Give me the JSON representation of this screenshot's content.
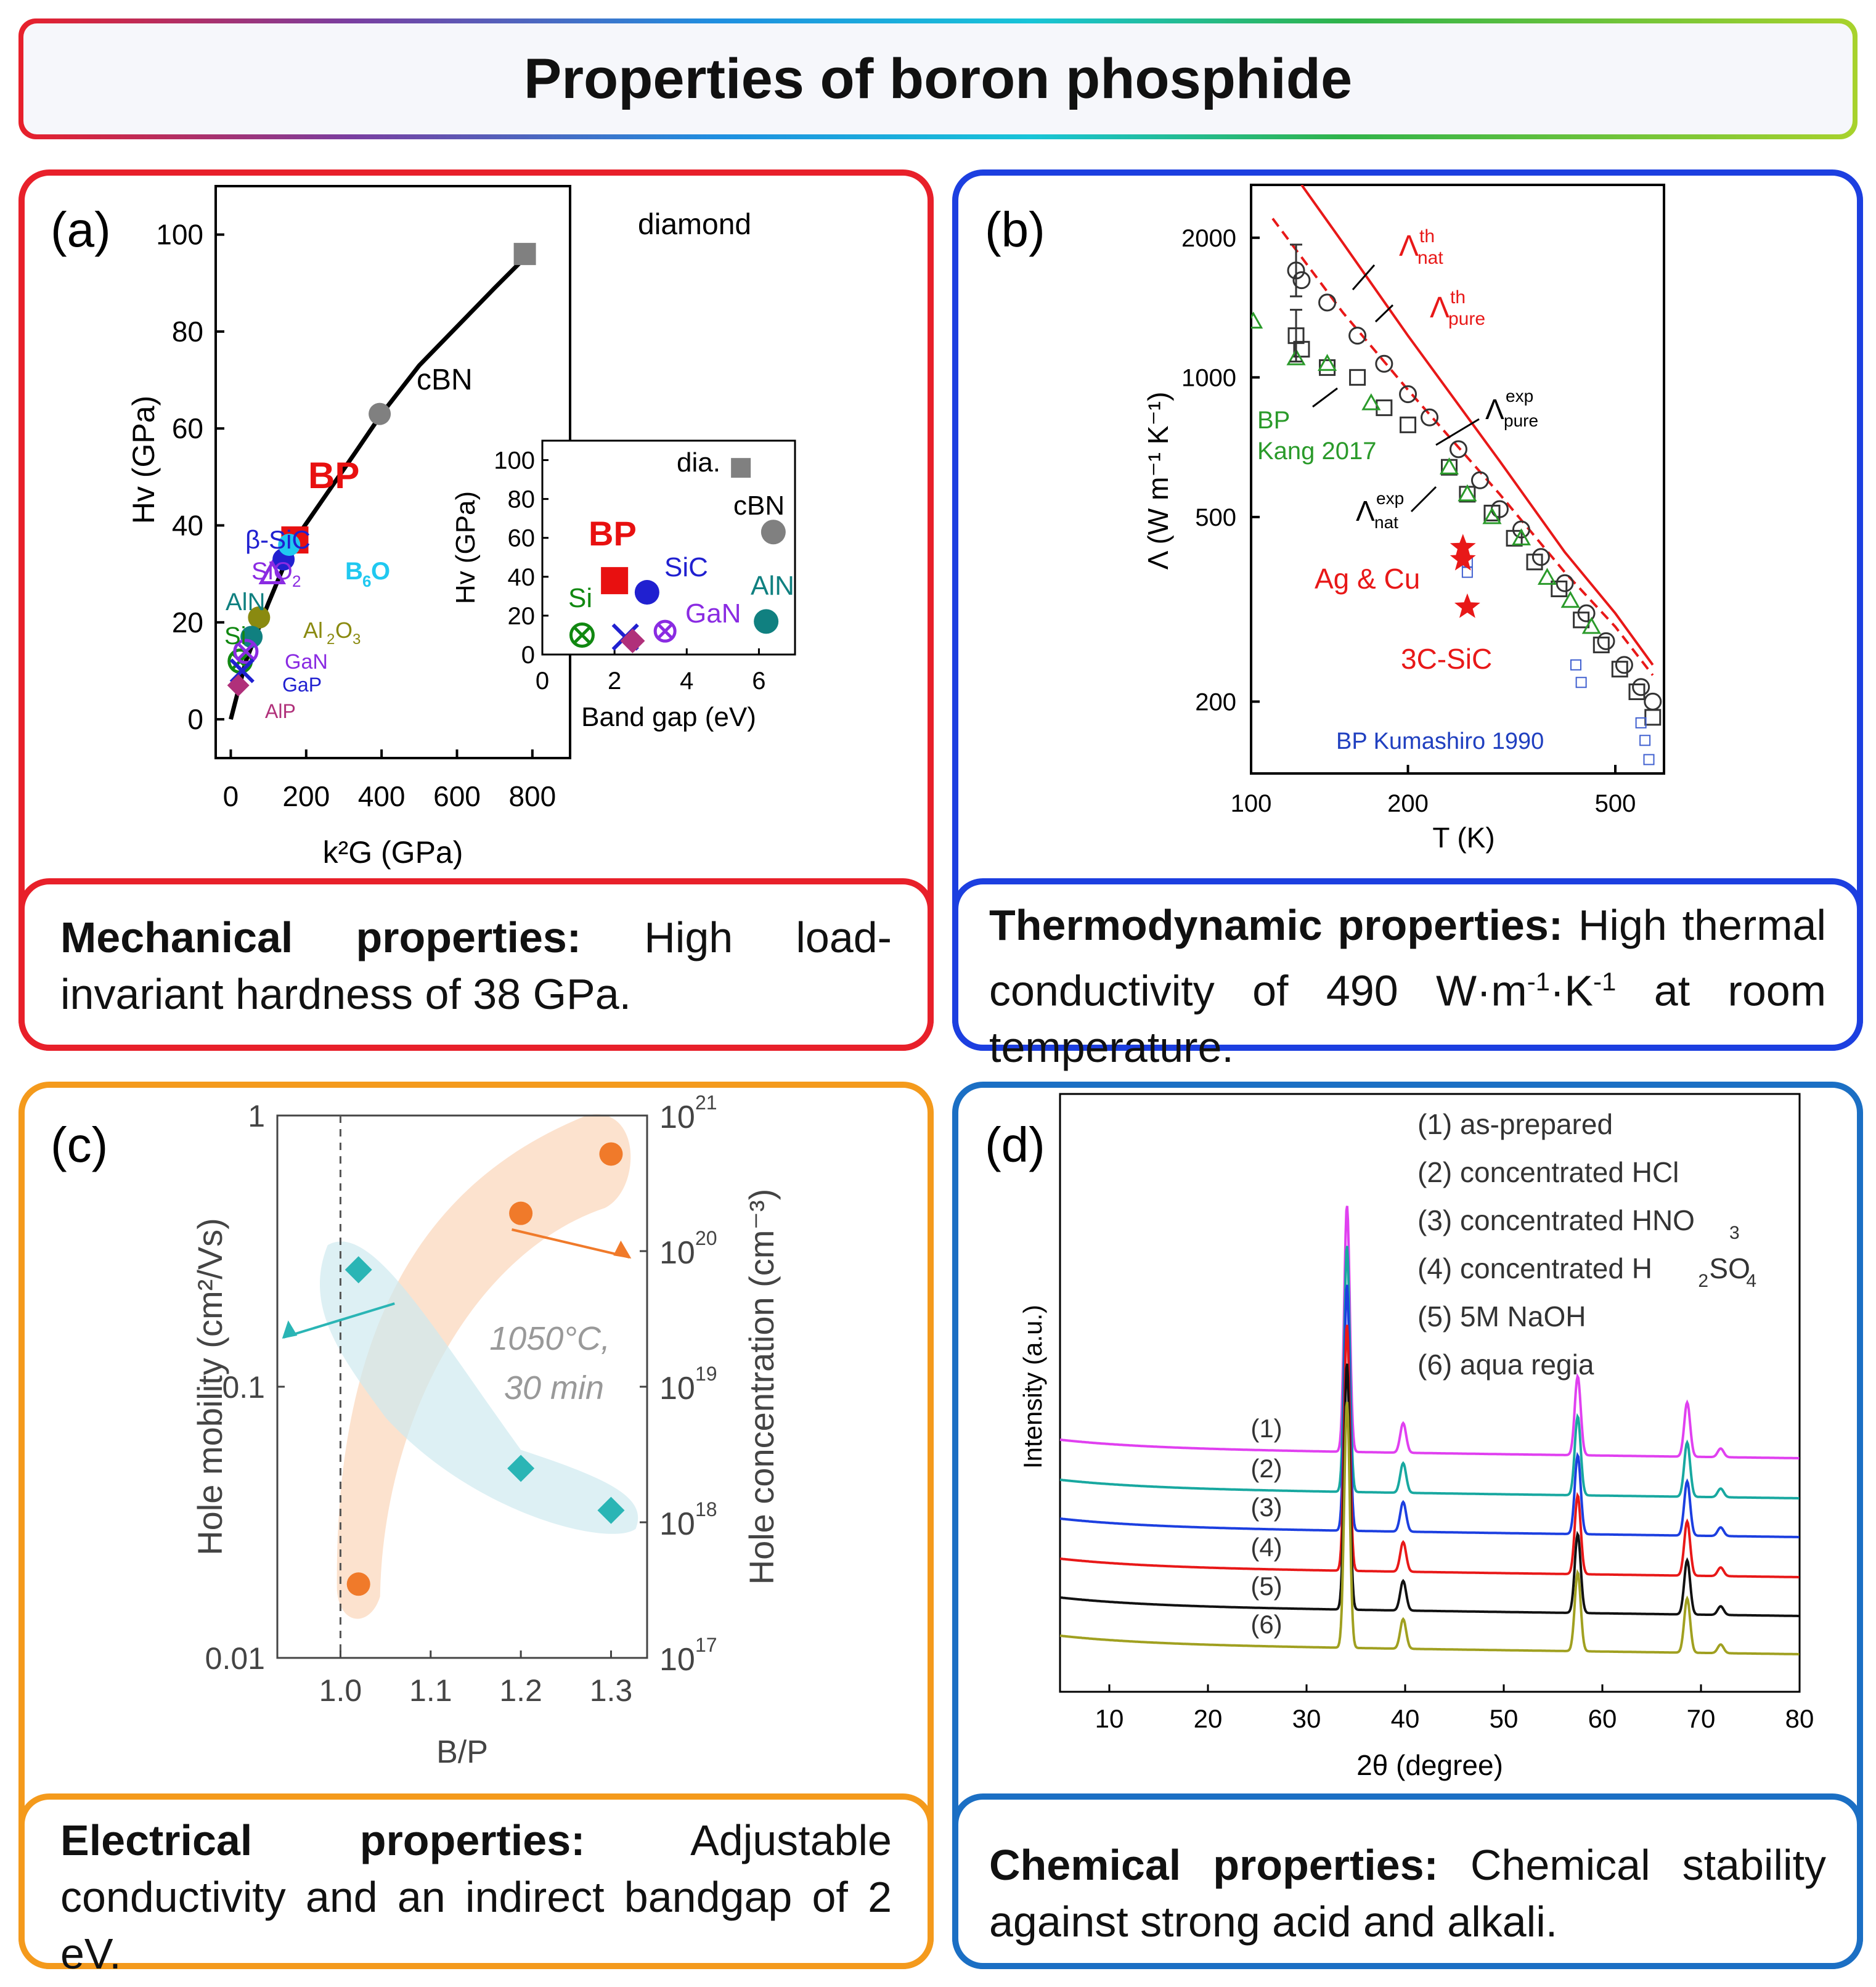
{
  "banner": {
    "title": "Properties of boron phosphide"
  },
  "panels": {
    "a": {
      "label": "(a)",
      "caption_bold": "Mechanical properties:",
      "caption_text": "High load-invariant hardness of 38 GPa.",
      "border": "#e8202a"
    },
    "b": {
      "label": "(b)",
      "caption_bold": "Thermodynamic properties:",
      "caption_text_1": "High thermal conductivity of 490 W·m",
      "sup1": "-1",
      "mid": "·K",
      "sup2": "-1",
      "caption_text_2": "at room temperature.",
      "border": "#1c3fe0"
    },
    "c": {
      "label": "(c)",
      "caption_bold": "Electrical properties:",
      "caption_text": "Adjustable conductivity and an indirect bandgap of 2 eV.",
      "border": "#f49a1c"
    },
    "d": {
      "label": "(d)",
      "caption_bold": "Chemical properties:",
      "caption_text": "Chemical stability against strong acid and alkali.",
      "border": "#1b6fc4"
    }
  },
  "chart_data": [
    {
      "id": "a",
      "type": "scatter",
      "xlabel": "k²G (GPa)",
      "ylabel": "Hv (GPa)",
      "xlim": [
        -40,
        900
      ],
      "ylim": [
        -8,
        110
      ],
      "xticks": [
        "0",
        "200",
        "400",
        "600",
        "800"
      ],
      "yticks": [
        "0",
        "20",
        "40",
        "60",
        "80",
        "100"
      ],
      "curve": [
        [
          0,
          0
        ],
        [
          40,
          12
        ],
        [
          100,
          24
        ],
        [
          170,
          37
        ],
        [
          250,
          46
        ],
        [
          330,
          55
        ],
        [
          400,
          63
        ],
        [
          500,
          73
        ],
        [
          600,
          81
        ],
        [
          700,
          89
        ],
        [
          790,
          96
        ]
      ],
      "points": [
        {
          "name": "diamond",
          "x": 780,
          "y": 96,
          "marker": "square",
          "color": "#808080"
        },
        {
          "name": "cBN",
          "x": 395,
          "y": 63,
          "marker": "circle",
          "color": "#808080"
        },
        {
          "name": "BP",
          "x": 170,
          "y": 37,
          "marker": "square",
          "color": "#e81010"
        },
        {
          "name": "β-SiC",
          "x": 140,
          "y": 33,
          "marker": "circle",
          "color": "#2020d0"
        },
        {
          "name": "B6O",
          "x": 155,
          "y": 36,
          "marker": "circle",
          "color": "#20c8f0"
        },
        {
          "name": "SiO2",
          "x": 110,
          "y": 30,
          "marker": "triangle",
          "color": "#8a2be2"
        },
        {
          "name": "Al2O3",
          "x": 75,
          "y": 21,
          "marker": "circle",
          "color": "#8a8a10"
        },
        {
          "name": "AlN",
          "x": 55,
          "y": 17,
          "marker": "circle",
          "color": "#108080"
        },
        {
          "name": "Si",
          "x": 25,
          "y": 12,
          "marker": "cross",
          "color": "#118811"
        },
        {
          "name": "GaN",
          "x": 40,
          "y": 14,
          "marker": "circlecross",
          "color": "#8a2be2"
        },
        {
          "name": "GaP",
          "x": 30,
          "y": 10,
          "marker": "x",
          "color": "#2020d0"
        },
        {
          "name": "AlP",
          "x": 20,
          "y": 7,
          "marker": "diamond",
          "color": "#b0307a"
        }
      ],
      "labels": [
        "diamond",
        "cBN",
        "BP",
        "β-SiC",
        "SiO",
        "2",
        "B",
        "6",
        "O",
        "AlN",
        "Al",
        "2",
        "O",
        "3",
        "Si",
        "GaN",
        "GaP",
        "AlP"
      ],
      "inset": {
        "xlabel": "Band gap (eV)",
        "ylabel": "Hv (GPa)",
        "xticks": [
          "0",
          "2",
          "4",
          "6"
        ],
        "yticks": [
          "0",
          "20",
          "40",
          "60",
          "80",
          "100"
        ],
        "points": [
          {
            "name": "dia.",
            "x": 5.5,
            "y": 96
          },
          {
            "name": "cBN",
            "x": 6.4,
            "y": 63
          },
          {
            "name": "BP",
            "x": 2.0,
            "y": 38
          },
          {
            "name": "SiC",
            "x": 2.9,
            "y": 32
          },
          {
            "name": "AlN",
            "x": 6.2,
            "y": 17
          },
          {
            "name": "Si",
            "x": 1.1,
            "y": 10
          },
          {
            "name": "GaN",
            "x": 3.4,
            "y": 12
          },
          {
            "name": "GaP",
            "x": 2.3,
            "y": 9
          },
          {
            "name": "AlP",
            "x": 2.5,
            "y": 7
          }
        ]
      }
    },
    {
      "id": "b",
      "type": "scatter",
      "xlabel": "T (K)",
      "ylabel": "Λ (W m⁻¹ K⁻¹)",
      "xscale": "log",
      "yscale": "log",
      "xlim": [
        100,
        620
      ],
      "ylim": [
        140,
        2600
      ],
      "xticks": [
        "100",
        "200",
        "500"
      ],
      "yticks": [
        "200",
        "500",
        "1000",
        "2000"
      ],
      "theory_nat": [
        [
          110,
          2200
        ],
        [
          150,
          1380
        ],
        [
          200,
          940
        ],
        [
          300,
          560
        ],
        [
          400,
          380
        ],
        [
          500,
          290
        ],
        [
          590,
          228
        ]
      ],
      "theory_pure": [
        [
          125,
          2600
        ],
        [
          150,
          1950
        ],
        [
          200,
          1230
        ],
        [
          300,
          660
        ],
        [
          400,
          420
        ],
        [
          500,
          310
        ],
        [
          590,
          240
        ]
      ],
      "exp_pure_circles": [
        [
          122,
          1700
        ],
        [
          125,
          1620
        ],
        [
          140,
          1450
        ],
        [
          160,
          1230
        ],
        [
          180,
          1070
        ],
        [
          200,
          920
        ],
        [
          220,
          820
        ],
        [
          250,
          700
        ],
        [
          275,
          600
        ],
        [
          300,
          520
        ],
        [
          330,
          470
        ],
        [
          360,
          410
        ],
        [
          400,
          360
        ],
        [
          440,
          310
        ],
        [
          480,
          270
        ],
        [
          520,
          240
        ],
        [
          560,
          215
        ],
        [
          590,
          200
        ]
      ],
      "exp_nat_squares": [
        [
          122,
          1230
        ],
        [
          125,
          1150
        ],
        [
          140,
          1050
        ],
        [
          160,
          1000
        ],
        [
          180,
          860
        ],
        [
          200,
          790
        ],
        [
          240,
          640
        ],
        [
          260,
          560
        ],
        [
          290,
          510
        ],
        [
          320,
          450
        ],
        [
          350,
          400
        ],
        [
          390,
          350
        ],
        [
          430,
          300
        ],
        [
          470,
          265
        ],
        [
          510,
          235
        ],
        [
          550,
          210
        ],
        [
          590,
          185
        ]
      ],
      "kang_triangles": [
        [
          101,
          1320
        ],
        [
          122,
          1100
        ],
        [
          140,
          1070
        ],
        [
          170,
          880
        ],
        [
          240,
          640
        ],
        [
          260,
          560
        ],
        [
          290,
          500
        ],
        [
          330,
          450
        ],
        [
          370,
          370
        ],
        [
          410,
          330
        ],
        [
          450,
          290
        ]
      ],
      "kumashiro_squares": [
        [
          260,
          400
        ],
        [
          260,
          380
        ],
        [
          420,
          240
        ],
        [
          430,
          220
        ],
        [
          560,
          180
        ],
        [
          570,
          165
        ],
        [
          580,
          150
        ]
      ],
      "stars": [
        {
          "name": "Ag & Cu",
          "x": 255,
          "y": 430
        },
        {
          "name": "Ag & Cu",
          "x": 255,
          "y": 405
        },
        {
          "name": "3C-SiC",
          "x": 260,
          "y": 320
        }
      ],
      "labels": [
        "Λ",
        "nat",
        "th",
        "Λ",
        "pure",
        "th",
        "Λ",
        "pure",
        "exp",
        "Λ",
        "nat",
        "exp",
        "BP",
        "Kang 2017",
        "Ag & Cu",
        "3C-SiC",
        "BP Kumashiro 1990"
      ]
    },
    {
      "id": "c",
      "type": "scatter",
      "xlabel": "B/P",
      "ylabel": "Hole mobility (cm²/Vs)",
      "y2label": "Hole concentration (cm⁻³)",
      "xlim": [
        0.93,
        1.34
      ],
      "xticks": [
        "1.0",
        "1.1",
        "1.2",
        "1.3"
      ],
      "yticks": [
        "0.01",
        "0.1",
        "1"
      ],
      "y2ticks": [
        {
          "base": "10",
          "exp": "17"
        },
        {
          "base": "10",
          "exp": "18"
        },
        {
          "base": "10",
          "exp": "19"
        },
        {
          "base": "10",
          "exp": "20"
        },
        {
          "base": "10",
          "exp": "21"
        }
      ],
      "mobility": {
        "name": "Hole mobility",
        "x": [
          1.02,
          1.2,
          1.3
        ],
        "y": [
          0.27,
          0.05,
          0.035
        ],
        "color": "#2ab5b5"
      },
      "concentration": {
        "name": "Hole concentration",
        "x": [
          1.02,
          1.2,
          1.3
        ],
        "y": [
          3.5e+17,
          1.9e+20,
          5.2e+20
        ],
        "color": "#f07a2a"
      },
      "vline": 1.0,
      "annotation": [
        "1050°C,",
        "30 min"
      ]
    },
    {
      "id": "d",
      "type": "line",
      "xlabel": "2θ (degree)",
      "ylabel": "Intensity (a.u.)",
      "xlim": [
        5,
        80
      ],
      "xticks": [
        "10",
        "20",
        "30",
        "40",
        "50",
        "60",
        "70",
        "80"
      ],
      "peaks": [
        {
          "x": 34.1,
          "h": 1.0
        },
        {
          "x": 39.8,
          "h": 0.12
        },
        {
          "x": 57.5,
          "h": 0.32
        },
        {
          "x": 68.6,
          "h": 0.22
        },
        {
          "x": 72.0,
          "h": 0.035
        }
      ],
      "series": [
        {
          "name": "(1)",
          "legend": "(1) as-prepared",
          "color": "#e040f0"
        },
        {
          "name": "(2)",
          "legend": "(2) concentrated HCl",
          "color": "#18a8a0"
        },
        {
          "name": "(3)",
          "legend": "(3) concentrated HNO",
          "sub": "3",
          "color": "#1c3fe0"
        },
        {
          "name": "(4)",
          "legend": "(4) concentrated H",
          "sub": "2",
          "legend_end": "SO",
          "sub2": "4",
          "color": "#e81818"
        },
        {
          "name": "(5)",
          "legend": "(5) 5M NaOH",
          "color": "#111111"
        },
        {
          "name": "(6)",
          "legend": "(6) aqua regia",
          "color": "#a0a020"
        }
      ]
    }
  ]
}
